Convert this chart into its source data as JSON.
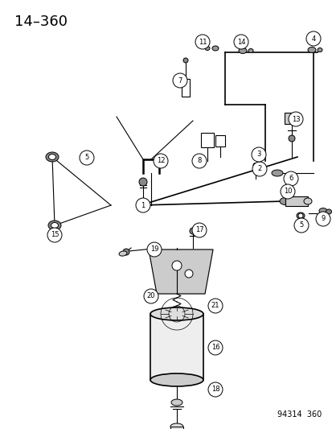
{
  "title": "14–360",
  "bg": "#ffffff",
  "lc": "#000000",
  "watermark": "94314  360",
  "figsize": [
    4.14,
    5.33
  ],
  "dpi": 100
}
